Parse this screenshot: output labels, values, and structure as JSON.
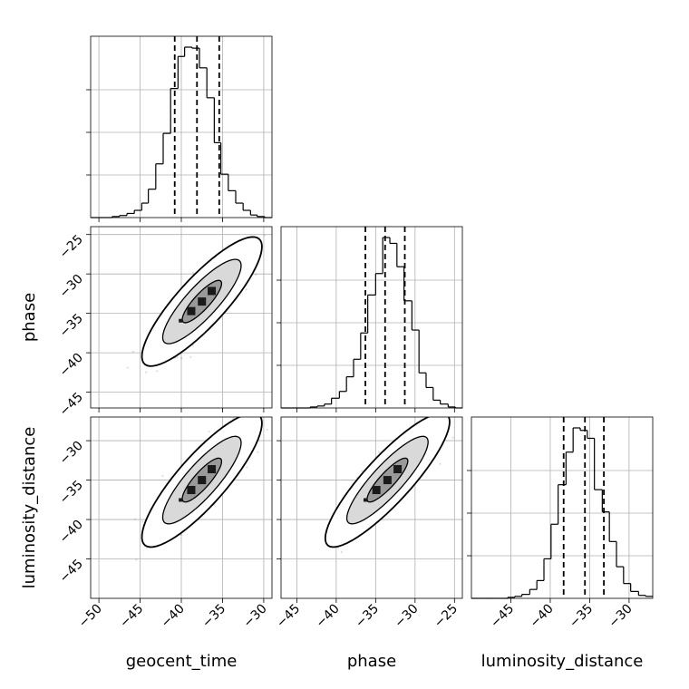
{
  "chart_data": {
    "type": "corner",
    "parameters": [
      "geocent_time",
      "phase",
      "luminosity_distance"
    ],
    "axis_labels": {
      "geocent_time": "geocent_time",
      "phase": "phase",
      "luminosity_distance": "luminosity_distance"
    },
    "grid": true,
    "ranges": {
      "geocent_time": [
        -51,
        -29
      ],
      "phase": [
        -47,
        -24
      ],
      "luminosity_distance": [
        -50,
        -27
      ]
    },
    "ticks": {
      "geocent_time": [
        -50,
        -45,
        -40,
        -35,
        -30
      ],
      "phase": [
        -45,
        -40,
        -35,
        -30,
        -25
      ],
      "phase_y": [
        -45,
        -40,
        -35,
        -30,
        -25
      ],
      "luminosity_distance": [
        -45,
        -40,
        -35,
        -30
      ],
      "luminosity_distance_y": [
        -45,
        -40,
        -35,
        -30
      ]
    },
    "tick_labels": {
      "geocent_time": [
        "−50",
        "−45",
        "−40",
        "−35",
        "−30"
      ],
      "phase": [
        "−45",
        "−40",
        "−35",
        "−30",
        "−25"
      ],
      "phase_y": [
        "−45",
        "−40",
        "−35",
        "−30",
        "−25"
      ],
      "luminosity_distance": [
        "−45",
        "−40",
        "−35",
        "−30"
      ],
      "luminosity_distance_y": [
        "−45",
        "−40",
        "−35",
        "−30"
      ]
    },
    "quantiles": {
      "geocent_time": [
        -40.8,
        -38.1,
        -35.4
      ],
      "phase": [
        -36.3,
        -33.8,
        -31.3
      ],
      "luminosity_distance": [
        -38.3,
        -35.6,
        -33.2
      ]
    },
    "histograms": {
      "geocent_time": {
        "edges": [
          -51,
          -50.1,
          -49.2,
          -48.4,
          -47.5,
          -46.6,
          -45.7,
          -44.8,
          -44.0,
          -43.1,
          -42.2,
          -41.3,
          -40.4,
          -39.6,
          -38.7,
          -37.8,
          -36.9,
          -36.0,
          -35.2,
          -34.3,
          -33.4,
          -32.5,
          -31.6,
          -30.8,
          -29.9,
          -29.0
        ],
        "counts": [
          0,
          0,
          0,
          2,
          4,
          8,
          14,
          28,
          55,
          104,
          163,
          250,
          312,
          330,
          328,
          290,
          232,
          145,
          84,
          52,
          28,
          14,
          5,
          2,
          0
        ]
      },
      "phase": {
        "edges": [
          -47,
          -46.1,
          -45.2,
          -44.2,
          -43.3,
          -42.4,
          -41.5,
          -40.6,
          -39.6,
          -38.7,
          -37.8,
          -36.9,
          -36.0,
          -35.0,
          -34.1,
          -33.2,
          -32.3,
          -31.4,
          -30.4,
          -29.5,
          -28.6,
          -27.7,
          -26.8,
          -25.8,
          -24.9,
          -24.0
        ],
        "counts": [
          0,
          0,
          0,
          0,
          2,
          4,
          8,
          20,
          34,
          64,
          100,
          154,
          232,
          276,
          350,
          338,
          290,
          220,
          160,
          72,
          42,
          16,
          8,
          2,
          0
        ]
      },
      "luminosity_distance": {
        "edges": [
          -50,
          -49.1,
          -48.2,
          -47.2,
          -46.3,
          -45.4,
          -44.5,
          -43.6,
          -42.6,
          -41.7,
          -40.8,
          -39.9,
          -39.0,
          -38.0,
          -37.1,
          -36.2,
          -35.3,
          -34.4,
          -33.4,
          -32.5,
          -31.6,
          -30.7,
          -29.8,
          -28.8,
          -27.9,
          -27.0
        ],
        "counts": [
          0,
          0,
          0,
          0,
          0,
          2,
          4,
          8,
          18,
          36,
          80,
          150,
          230,
          296,
          345,
          340,
          324,
          220,
          175,
          115,
          64,
          30,
          14,
          6,
          4
        ]
      }
    },
    "joint": [
      {
        "x": "geocent_time",
        "y": "phase",
        "center": [
          -37.5,
          -33.5
        ],
        "sigma": [
          2.4,
          2.7
        ],
        "rho": 0.85,
        "contour_levels": [
          0.39,
          0.86,
          0.99
        ]
      },
      {
        "x": "geocent_time",
        "y": "luminosity_distance",
        "center": [
          -37.5,
          -35.0
        ],
        "sigma": [
          2.4,
          2.8
        ],
        "rho": 0.85,
        "contour_levels": [
          0.39,
          0.86,
          0.99
        ]
      },
      {
        "x": "phase",
        "y": "luminosity_distance",
        "center": [
          -33.5,
          -35.0
        ],
        "sigma": [
          2.6,
          2.8
        ],
        "rho": 0.87,
        "contour_levels": [
          0.39,
          0.86,
          0.99
        ]
      }
    ]
  }
}
